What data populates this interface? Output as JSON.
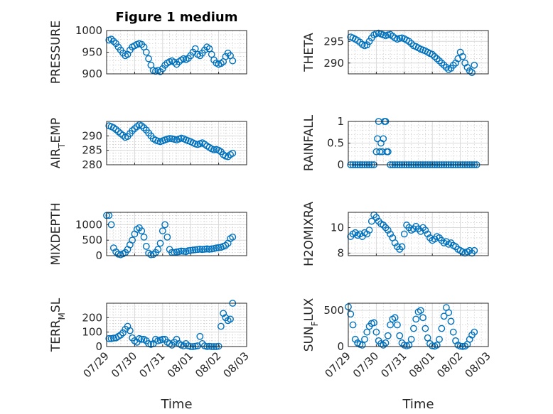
{
  "figure_title": "Figure 1 medium",
  "xlabel": "Time",
  "colors": {
    "marker": "#0072BD",
    "axis": "#262626",
    "grid": "#d9d9d9"
  },
  "chart_data": [
    {
      "type": "scatter",
      "ylabel": "PRESSURE",
      "ylabel_sub": "",
      "ylabel_rest": "",
      "ylim": [
        900,
        1000
      ],
      "yticks": [
        900,
        950,
        1000
      ],
      "grid": true,
      "title": "Figure 1 medium",
      "x": [
        "07/29 02:00",
        "07/29 04:00",
        "07/29 06:00",
        "07/29 08:00",
        "07/29 10:00",
        "07/29 12:00",
        "07/29 14:00",
        "07/29 16:00",
        "07/29 18:00",
        "07/29 20:00",
        "07/29 22:00",
        "07/30 00:00",
        "07/30 02:00",
        "07/30 04:00",
        "07/30 06:00",
        "07/30 08:00",
        "07/30 10:00",
        "07/30 12:00",
        "07/30 14:00",
        "07/30 16:00",
        "07/30 18:00",
        "07/30 20:00",
        "07/30 22:00",
        "07/31 00:00",
        "07/31 02:00",
        "07/31 04:00",
        "07/31 06:00",
        "07/31 08:00",
        "07/31 10:00",
        "07/31 12:00",
        "07/31 14:00",
        "07/31 16:00",
        "07/31 18:00",
        "07/31 20:00",
        "07/31 22:00",
        "08/01 00:00",
        "08/01 02:00",
        "08/01 04:00",
        "08/01 06:00",
        "08/01 08:00",
        "08/01 10:00",
        "08/01 12:00",
        "08/01 14:00",
        "08/01 16:00",
        "08/01 18:00",
        "08/01 20:00",
        "08/01 22:00",
        "08/02 00:00",
        "08/02 02:00",
        "08/02 04:00",
        "08/02 06:00",
        "08/02 08:00",
        "08/02 10:00",
        "08/02 12:00"
      ],
      "y": [
        978,
        980,
        975,
        970,
        962,
        955,
        948,
        942,
        945,
        955,
        962,
        965,
        968,
        970,
        968,
        962,
        950,
        935,
        920,
        908,
        906,
        908,
        905,
        912,
        920,
        925,
        928,
        930,
        927,
        922,
        928,
        932,
        935,
        933,
        936,
        942,
        950,
        958,
        945,
        942,
        948,
        955,
        962,
        958,
        945,
        932,
        925,
        922,
        924,
        928,
        940,
        948,
        942,
        930
      ]
    },
    {
      "type": "scatter",
      "ylabel": "THETA",
      "ylabel_sub": "",
      "ylabel_rest": "",
      "ylim": [
        287.5,
        297.5
      ],
      "yticks": [
        290,
        295
      ],
      "grid": true,
      "x": [
        "07/29 02:00",
        "07/29 04:00",
        "07/29 06:00",
        "07/29 08:00",
        "07/29 10:00",
        "07/29 12:00",
        "07/29 14:00",
        "07/29 16:00",
        "07/29 18:00",
        "07/29 20:00",
        "07/29 22:00",
        "07/30 00:00",
        "07/30 02:00",
        "07/30 04:00",
        "07/30 06:00",
        "07/30 08:00",
        "07/30 10:00",
        "07/30 12:00",
        "07/30 14:00",
        "07/30 16:00",
        "07/30 18:00",
        "07/30 20:00",
        "07/30 22:00",
        "07/31 00:00",
        "07/31 02:00",
        "07/31 04:00",
        "07/31 06:00",
        "07/31 08:00",
        "07/31 10:00",
        "07/31 12:00",
        "07/31 14:00",
        "07/31 16:00",
        "07/31 18:00",
        "07/31 20:00",
        "07/31 22:00",
        "08/01 00:00",
        "08/01 02:00",
        "08/01 04:00",
        "08/01 06:00",
        "08/01 08:00",
        "08/01 10:00",
        "08/01 12:00",
        "08/01 14:00",
        "08/01 16:00",
        "08/01 18:00",
        "08/01 20:00",
        "08/01 22:00",
        "08/02 00:00",
        "08/02 02:00",
        "08/02 04:00",
        "08/02 06:00",
        "08/02 08:00",
        "08/02 10:00",
        "08/02 12:00"
      ],
      "y": [
        296,
        295.8,
        295.5,
        295.2,
        294.8,
        294.3,
        294,
        294.2,
        295,
        295.8,
        296.5,
        296.8,
        296.9,
        296.7,
        296.5,
        296.3,
        296.5,
        296.6,
        296.2,
        295.8,
        295.5,
        295.7,
        295.8,
        295.6,
        295.3,
        295,
        294.5,
        294,
        293.8,
        293.5,
        293.2,
        293,
        292.8,
        292.5,
        292.2,
        292,
        291.5,
        291,
        290.5,
        290,
        289.5,
        289,
        288.5,
        288.8,
        289.5,
        290,
        291,
        292.5,
        291.5,
        290,
        289,
        288.2,
        287.8,
        289.5
      ]
    },
    {
      "type": "scatter",
      "ylabel": "AIR",
      "ylabel_sub": "T",
      "ylabel_rest": "EMP",
      "ylim": [
        280,
        295
      ],
      "yticks": [
        280,
        285,
        290
      ],
      "grid": true,
      "x": [
        "07/29 02:00",
        "07/29 04:00",
        "07/29 06:00",
        "07/29 08:00",
        "07/29 10:00",
        "07/29 12:00",
        "07/29 14:00",
        "07/29 16:00",
        "07/29 18:00",
        "07/29 20:00",
        "07/29 22:00",
        "07/30 00:00",
        "07/30 02:00",
        "07/30 04:00",
        "07/30 06:00",
        "07/30 08:00",
        "07/30 10:00",
        "07/30 12:00",
        "07/30 14:00",
        "07/30 16:00",
        "07/30 18:00",
        "07/30 20:00",
        "07/30 22:00",
        "07/31 00:00",
        "07/31 02:00",
        "07/31 04:00",
        "07/31 06:00",
        "07/31 08:00",
        "07/31 10:00",
        "07/31 12:00",
        "07/31 14:00",
        "07/31 16:00",
        "07/31 18:00",
        "07/31 20:00",
        "07/31 22:00",
        "08/01 00:00",
        "08/01 02:00",
        "08/01 04:00",
        "08/01 06:00",
        "08/01 08:00",
        "08/01 10:00",
        "08/01 12:00",
        "08/01 14:00",
        "08/01 16:00",
        "08/01 18:00",
        "08/01 20:00",
        "08/01 22:00",
        "08/02 00:00",
        "08/02 02:00",
        "08/02 04:00",
        "08/02 06:00",
        "08/02 08:00",
        "08/02 10:00",
        "08/02 12:00"
      ],
      "y": [
        293.5,
        293.2,
        292.8,
        292.2,
        291.5,
        290.8,
        290.2,
        289.5,
        289.8,
        290.8,
        291.8,
        292.5,
        293.2,
        293.8,
        293.5,
        292.8,
        292,
        291,
        290,
        289,
        288.5,
        288.2,
        288,
        288.3,
        288.6,
        288.9,
        289.1,
        289,
        288.8,
        288.6,
        288.9,
        289.2,
        289,
        288.6,
        288.3,
        288,
        287.6,
        287.2,
        287,
        287.3,
        287.6,
        287.1,
        286.5,
        286,
        285.5,
        285.2,
        285.3,
        285,
        284.5,
        283.5,
        283,
        282.8,
        283.5,
        284
      ]
    },
    {
      "type": "scatter",
      "ylabel": "RAINFALL",
      "ylabel_sub": "",
      "ylabel_rest": "",
      "ylim": [
        0,
        1
      ],
      "yticks": [
        0,
        0.5,
        1
      ],
      "grid": true,
      "x": [
        "07/29 02:00",
        "07/29 04:00",
        "07/29 06:00",
        "07/29 08:00",
        "07/29 10:00",
        "07/29 12:00",
        "07/29 14:00",
        "07/29 16:00",
        "07/29 18:00",
        "07/29 20:00",
        "07/29 22:00",
        "07/30 00:00",
        "07/30 01:00",
        "07/30 02:00",
        "07/30 03:00",
        "07/30 04:00",
        "07/30 05:00",
        "07/30 06:00",
        "07/30 07:00",
        "07/30 08:00",
        "07/30 09:00",
        "07/30 10:00",
        "07/30 12:00",
        "07/30 14:00",
        "07/30 16:00",
        "07/30 18:00",
        "07/30 20:00",
        "07/30 22:00",
        "07/31 00:00",
        "07/31 02:00",
        "07/31 04:00",
        "07/31 06:00",
        "07/31 08:00",
        "07/31 10:00",
        "07/31 12:00",
        "07/31 14:00",
        "07/31 16:00",
        "07/31 18:00",
        "07/31 20:00",
        "07/31 22:00",
        "08/01 00:00",
        "08/01 02:00",
        "08/01 04:00",
        "08/01 06:00",
        "08/01 08:00",
        "08/01 10:00",
        "08/01 12:00",
        "08/01 14:00",
        "08/01 16:00",
        "08/01 18:00",
        "08/01 20:00",
        "08/01 22:00",
        "08/02 00:00",
        "08/02 02:00",
        "08/02 04:00",
        "08/02 06:00",
        "08/02 08:00",
        "08/02 10:00",
        "08/02 12:00",
        "08/02 14:00"
      ],
      "y": [
        0,
        0,
        0,
        0,
        0,
        0,
        0,
        0,
        0,
        0,
        0,
        0.3,
        0.6,
        1,
        0.3,
        0.5,
        0.3,
        0.6,
        1,
        1,
        0.3,
        0.3,
        0,
        0,
        0,
        0,
        0,
        0,
        0,
        0,
        0,
        0,
        0,
        0,
        0,
        0,
        0,
        0,
        0,
        0,
        0,
        0,
        0,
        0,
        0,
        0,
        0,
        0,
        0,
        0,
        0,
        0,
        0,
        0,
        0,
        0,
        0,
        0,
        0,
        0
      ]
    },
    {
      "type": "scatter",
      "ylabel": "MIXDEPTH",
      "ylabel_sub": "",
      "ylabel_rest": "",
      "ylim": [
        0,
        1400
      ],
      "yticks": [
        0,
        500,
        1000
      ],
      "grid": true,
      "x": [
        "07/29 00:00",
        "07/29 02:00",
        "07/29 04:00",
        "07/29 06:00",
        "07/29 08:00",
        "07/29 10:00",
        "07/29 12:00",
        "07/29 14:00",
        "07/29 16:00",
        "07/29 18:00",
        "07/29 20:00",
        "07/29 22:00",
        "07/30 00:00",
        "07/30 02:00",
        "07/30 04:00",
        "07/30 06:00",
        "07/30 08:00",
        "07/30 10:00",
        "07/30 12:00",
        "07/30 14:00",
        "07/30 16:00",
        "07/30 18:00",
        "07/30 20:00",
        "07/30 22:00",
        "07/31 00:00",
        "07/31 02:00",
        "07/31 04:00",
        "07/31 06:00",
        "07/31 08:00",
        "07/31 10:00",
        "07/31 12:00",
        "07/31 14:00",
        "07/31 16:00",
        "07/31 18:00",
        "07/31 20:00",
        "07/31 22:00",
        "08/01 00:00",
        "08/01 02:00",
        "08/01 04:00",
        "08/01 06:00",
        "08/01 08:00",
        "08/01 10:00",
        "08/01 12:00",
        "08/01 14:00",
        "08/01 16:00",
        "08/01 18:00",
        "08/01 20:00",
        "08/01 22:00",
        "08/02 00:00",
        "08/02 02:00",
        "08/02 04:00",
        "08/02 06:00",
        "08/02 08:00",
        "08/02 10:00",
        "08/02 12:00"
      ],
      "y": [
        1300,
        1300,
        1000,
        250,
        120,
        50,
        30,
        60,
        100,
        200,
        350,
        500,
        700,
        850,
        900,
        800,
        600,
        300,
        80,
        30,
        40,
        100,
        200,
        400,
        800,
        1000,
        600,
        200,
        100,
        100,
        120,
        130,
        150,
        140,
        130,
        160,
        170,
        180,
        190,
        200,
        210,
        200,
        210,
        220,
        210,
        220,
        230,
        250,
        260,
        270,
        300,
        330,
        400,
        550,
        600
      ]
    },
    {
      "type": "scatter",
      "ylabel": "H2OMIXRA",
      "ylabel_sub": "",
      "ylabel_rest": "",
      "ylim": [
        7.8,
        11.2
      ],
      "yticks": [
        8,
        10
      ],
      "grid": true,
      "x": [
        "07/29 02:00",
        "07/29 04:00",
        "07/29 06:00",
        "07/29 08:00",
        "07/29 10:00",
        "07/29 12:00",
        "07/29 14:00",
        "07/29 16:00",
        "07/29 18:00",
        "07/29 20:00",
        "07/29 22:00",
        "07/30 00:00",
        "07/30 02:00",
        "07/30 04:00",
        "07/30 06:00",
        "07/30 08:00",
        "07/30 10:00",
        "07/30 12:00",
        "07/30 14:00",
        "07/30 16:00",
        "07/30 18:00",
        "07/30 20:00",
        "07/30 22:00",
        "07/31 00:00",
        "07/31 02:00",
        "07/31 04:00",
        "07/31 06:00",
        "07/31 08:00",
        "07/31 10:00",
        "07/31 12:00",
        "07/31 14:00",
        "07/31 16:00",
        "07/31 18:00",
        "07/31 20:00",
        "07/31 22:00",
        "08/01 00:00",
        "08/01 02:00",
        "08/01 04:00",
        "08/01 06:00",
        "08/01 08:00",
        "08/01 10:00",
        "08/01 12:00",
        "08/01 14:00",
        "08/01 16:00",
        "08/01 18:00",
        "08/01 20:00",
        "08/01 22:00",
        "08/02 00:00",
        "08/02 02:00",
        "08/02 04:00",
        "08/02 06:00",
        "08/02 08:00",
        "08/02 10:00",
        "08/02 12:00"
      ],
      "y": [
        9.3,
        9.5,
        9.6,
        9.4,
        9.5,
        9.3,
        9.6,
        9.5,
        9.8,
        10.5,
        11,
        10.8,
        10.5,
        10.3,
        10.2,
        10,
        9.8,
        9.5,
        9.2,
        8.8,
        8.5,
        8.3,
        8.5,
        9.5,
        10.2,
        10,
        9.8,
        9.9,
        10.1,
        9.9,
        9.7,
        10,
        9.8,
        9.5,
        9.2,
        9,
        9.1,
        9.3,
        9.2,
        9,
        8.8,
        8.9,
        8.7,
        8.8,
        8.6,
        8.5,
        8.3,
        8.2,
        8.1,
        8,
        8.1,
        8.2,
        8,
        8.2
      ]
    },
    {
      "type": "scatter",
      "ylabel": "TERR",
      "ylabel_sub": "M",
      "ylabel_rest": "SL",
      "ylim": [
        0,
        300
      ],
      "yticks": [
        0,
        100,
        200
      ],
      "grid": true,
      "x": [
        "07/29 02:00",
        "07/29 04:00",
        "07/29 06:00",
        "07/29 08:00",
        "07/29 10:00",
        "07/29 12:00",
        "07/29 14:00",
        "07/29 16:00",
        "07/29 18:00",
        "07/29 20:00",
        "07/29 22:00",
        "07/30 00:00",
        "07/30 02:00",
        "07/30 04:00",
        "07/30 06:00",
        "07/30 08:00",
        "07/30 10:00",
        "07/30 12:00",
        "07/30 14:00",
        "07/30 16:00",
        "07/30 18:00",
        "07/30 20:00",
        "07/30 22:00",
        "07/31 00:00",
        "07/31 02:00",
        "07/31 04:00",
        "07/31 06:00",
        "07/31 08:00",
        "07/31 10:00",
        "07/31 12:00",
        "07/31 14:00",
        "07/31 16:00",
        "07/31 18:00",
        "07/31 20:00",
        "07/31 22:00",
        "08/01 00:00",
        "08/01 02:00",
        "08/01 04:00",
        "08/01 06:00",
        "08/01 08:00",
        "08/01 10:00",
        "08/01 12:00",
        "08/01 14:00",
        "08/01 16:00",
        "08/01 18:00",
        "08/01 20:00",
        "08/01 22:00",
        "08/02 00:00",
        "08/02 02:00",
        "08/02 04:00",
        "08/02 06:00",
        "08/02 08:00",
        "08/02 10:00",
        "08/02 12:00"
      ],
      "y": [
        55,
        55,
        58,
        60,
        70,
        80,
        95,
        120,
        140,
        110,
        60,
        40,
        30,
        55,
        50,
        50,
        40,
        20,
        15,
        20,
        50,
        40,
        45,
        50,
        50,
        30,
        20,
        10,
        30,
        50,
        20,
        10,
        5,
        20,
        5,
        0,
        0,
        2,
        5,
        70,
        20,
        5,
        0,
        2,
        0,
        0,
        0,
        2,
        140,
        230,
        200,
        180,
        190,
        300
      ]
    },
    {
      "type": "scatter",
      "ylabel": "SUN",
      "ylabel_sub": "F",
      "ylabel_rest": "LUX",
      "ylim": [
        0,
        600
      ],
      "yticks": [
        0,
        500
      ],
      "grid": true,
      "x": [
        "07/29 00:00",
        "07/29 02:00",
        "07/29 04:00",
        "07/29 06:00",
        "07/29 08:00",
        "07/29 10:00",
        "07/29 12:00",
        "07/29 14:00",
        "07/29 16:00",
        "07/29 18:00",
        "07/29 20:00",
        "07/29 22:00",
        "07/30 00:00",
        "07/30 02:00",
        "07/30 04:00",
        "07/30 06:00",
        "07/30 08:00",
        "07/30 10:00",
        "07/30 12:00",
        "07/30 14:00",
        "07/30 16:00",
        "07/30 18:00",
        "07/30 20:00",
        "07/30 22:00",
        "07/31 00:00",
        "07/31 02:00",
        "07/31 04:00",
        "07/31 06:00",
        "07/31 08:00",
        "07/31 10:00",
        "07/31 12:00",
        "07/31 14:00",
        "07/31 16:00",
        "07/31 18:00",
        "07/31 20:00",
        "07/31 22:00",
        "08/01 00:00",
        "08/01 02:00",
        "08/01 04:00",
        "08/01 06:00",
        "08/01 08:00",
        "08/01 10:00",
        "08/01 12:00",
        "08/01 14:00",
        "08/01 16:00",
        "08/01 18:00",
        "08/01 20:00",
        "08/01 22:00",
        "08/02 00:00",
        "08/02 02:00",
        "08/02 04:00",
        "08/02 06:00",
        "08/02 08:00",
        "08/02 10:00",
        "08/02 12:00"
      ],
      "y": [
        550,
        450,
        300,
        100,
        50,
        30,
        20,
        100,
        200,
        280,
        320,
        330,
        200,
        80,
        40,
        20,
        50,
        150,
        300,
        380,
        400,
        300,
        150,
        50,
        20,
        10,
        20,
        100,
        250,
        380,
        480,
        500,
        400,
        250,
        120,
        40,
        10,
        5,
        20,
        100,
        250,
        420,
        540,
        470,
        350,
        200,
        80,
        20,
        5,
        2,
        5,
        30,
        100,
        160,
        200
      ]
    }
  ]
}
